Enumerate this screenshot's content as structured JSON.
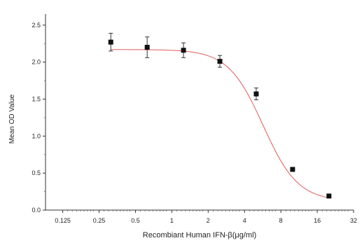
{
  "chart_data": {
    "type": "scatter",
    "xlabel": "Recombiant Human IFN-β(μg/ml)",
    "ylabel": "Mean OD Value",
    "x_scale": "log2",
    "xlim": [
      0.09,
      32
    ],
    "ylim": [
      0,
      2.65
    ],
    "x_ticks": [
      0.125,
      0.25,
      0.5,
      1,
      2,
      4,
      8,
      16,
      32
    ],
    "x_tick_labels": [
      "0.125",
      "0.25",
      "0.5",
      "1",
      "2",
      "4",
      "8",
      "16",
      "32"
    ],
    "y_ticks": [
      0.0,
      0.5,
      1.0,
      1.5,
      2.0,
      2.5
    ],
    "y_tick_labels": [
      "0.0",
      "0.5",
      "1.0",
      "1.5",
      "2.0",
      "2.5"
    ],
    "series": [
      {
        "x": [
          0.3125,
          0.625,
          1.25,
          2.5,
          5,
          10,
          20
        ],
        "y": [
          2.27,
          2.2,
          2.16,
          2.01,
          1.57,
          0.55,
          0.19
        ],
        "error": [
          0.12,
          0.14,
          0.1,
          0.08,
          0.08,
          0.0,
          0.0
        ],
        "color": "#111111"
      }
    ],
    "fit_curve": {
      "model": "4PL",
      "top": 2.17,
      "bottom": 0.12,
      "ec50": 5.7,
      "hill": 3.0,
      "color": "#e05a5a"
    },
    "grid": false,
    "legend": "none"
  }
}
